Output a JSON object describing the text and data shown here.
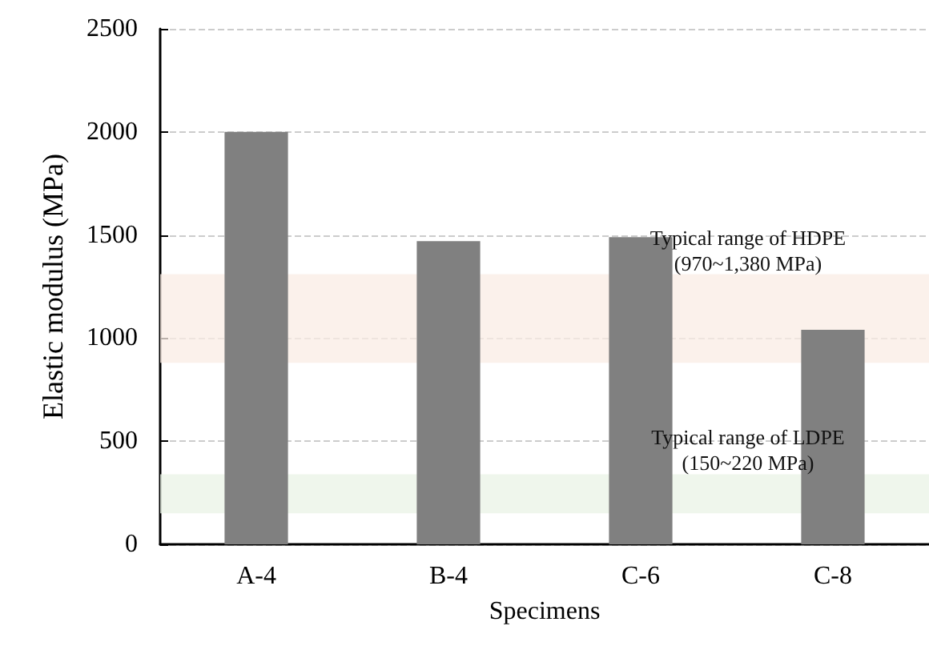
{
  "chart_data": {
    "type": "bar",
    "xlabel": "Specimens",
    "ylabel": "Elastic modulus (MPa)",
    "categories": [
      "A-4",
      "B-4",
      "C-6",
      "C-8"
    ],
    "values": [
      2000,
      1470,
      1490,
      1040
    ],
    "color": "#808080",
    "ylim": [
      0,
      2500
    ],
    "yticks": [
      0,
      500,
      1000,
      1500,
      2000,
      2500
    ],
    "grid": "y",
    "bands": [
      {
        "axis": "y",
        "from": 880,
        "to": 1310,
        "label": "Typical range of HDPE\n(970~1,380 MPa)",
        "color": "#f9ece4"
      },
      {
        "axis": "y",
        "from": 150,
        "to": 340,
        "label": "Typical range of LDPE\n(150~220 MPa)",
        "color": "#eaf3e5"
      }
    ]
  }
}
